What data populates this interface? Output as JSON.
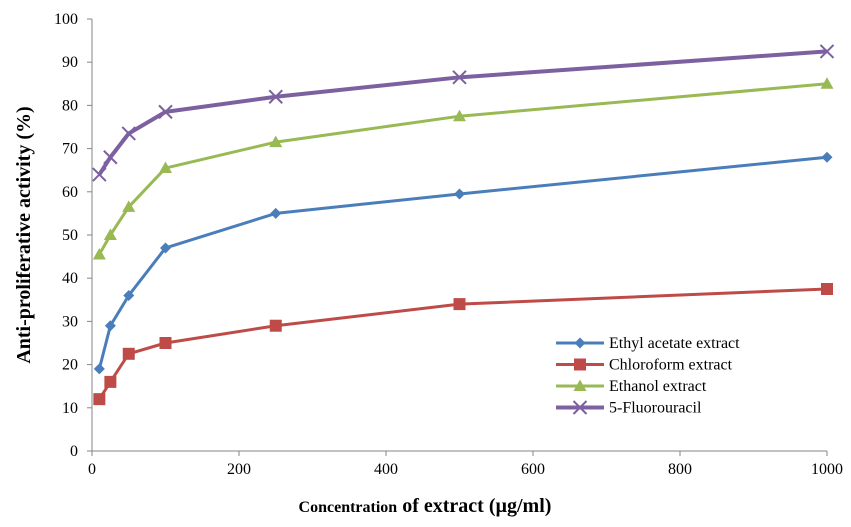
{
  "chart_data": {
    "type": "line",
    "title": "",
    "xlabel_parts": [
      "Concentration",
      " of extract (µg/ml)"
    ],
    "ylabel": "Anti-proliferative activity  (%)",
    "xlim": [
      0,
      1000
    ],
    "ylim": [
      0,
      100
    ],
    "xticks": [
      0,
      200,
      400,
      600,
      800,
      1000
    ],
    "yticks": [
      0,
      10,
      20,
      30,
      40,
      50,
      60,
      70,
      80,
      90,
      100
    ],
    "grid": false,
    "legend_position": "bottom-right",
    "x": [
      10,
      25,
      50,
      100,
      250,
      500,
      1000
    ],
    "series": [
      {
        "name": "Ethyl acetate extract",
        "color": "#4A7EBB",
        "marker": "diamond",
        "values": [
          19,
          29,
          36,
          47,
          55,
          59.5,
          68
        ]
      },
      {
        "name": "Chloroform extract",
        "color": "#BE4B48",
        "marker": "square",
        "values": [
          12,
          16,
          22.5,
          25,
          29,
          34,
          37.5
        ]
      },
      {
        "name": "Ethanol extract",
        "color": "#98B954",
        "marker": "triangle",
        "values": [
          45.5,
          50,
          56.5,
          65.5,
          71.5,
          77.5,
          85
        ]
      },
      {
        "name": "5-Fluorouracil",
        "color": "#7D60A0",
        "marker": "x",
        "values": [
          64,
          68,
          73.5,
          78.5,
          82,
          86.5,
          92.5
        ]
      }
    ]
  }
}
